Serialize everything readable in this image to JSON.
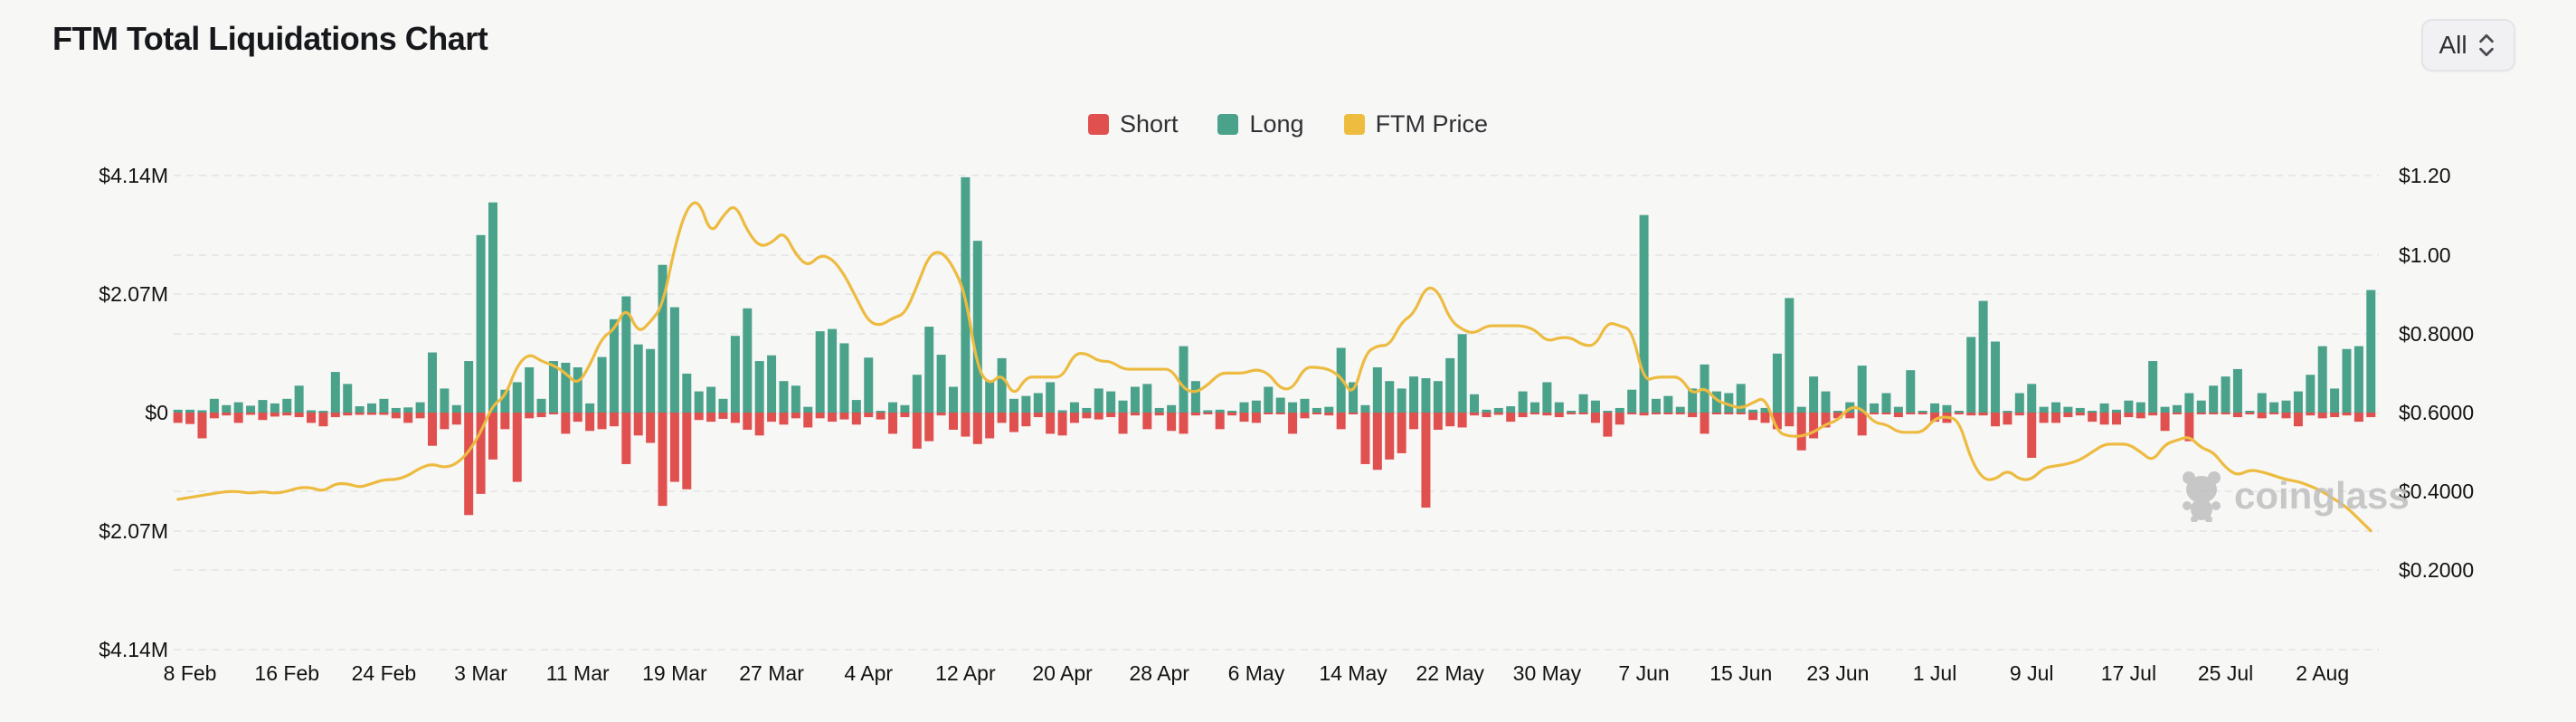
{
  "header": {
    "title": "FTM Total Liquidations Chart",
    "range_selector": {
      "value": "All"
    }
  },
  "legend": {
    "items": [
      {
        "label": "Short",
        "color": "#e0504f"
      },
      {
        "label": "Long",
        "color": "#4aa28b"
      },
      {
        "label": "FTM Price",
        "color": "#eebc3f"
      }
    ]
  },
  "watermark": {
    "text": "coinglass"
  },
  "colors": {
    "background": "#f7f7f6",
    "gridline": "#e3e3e3",
    "axis_text": "#121212",
    "short_bar": "#e0504f",
    "long_bar": "#4aa28b",
    "price_line": "#edbb40"
  },
  "chart_data": {
    "type": "bar+line",
    "title": "FTM Total Liquidations Chart",
    "grid": "dashed-horizontal",
    "legend_position": "top-center",
    "num_points": 182,
    "x_axis": {
      "tick_indices": [
        1,
        9,
        17,
        25,
        33,
        41,
        49,
        57,
        65,
        73,
        81,
        89,
        97,
        105,
        113,
        121,
        129,
        137,
        145,
        153,
        161,
        169,
        177
      ],
      "tick_labels": [
        "8 Feb",
        "16 Feb",
        "24 Feb",
        "3 Mar",
        "11 Mar",
        "19 Mar",
        "27 Mar",
        "4 Apr",
        "12 Apr",
        "20 Apr",
        "28 Apr",
        "6 May",
        "14 May",
        "22 May",
        "30 May",
        "7 Jun",
        "15 Jun",
        "23 Jun",
        "1 Jul",
        "9 Jul",
        "17 Jul",
        "25 Jul",
        "2 Aug"
      ]
    },
    "left_y_axis": {
      "tick_labels": [
        "$4.14M",
        "$2.07M",
        "$0",
        "$2.07M",
        "$4.14M"
      ],
      "tick_values_M": [
        4.14,
        2.07,
        0,
        -2.07,
        -4.14
      ]
    },
    "right_y_axis": {
      "tick_labels": [
        "$1.20",
        "$1.00",
        "$0.8000",
        "$0.6000",
        "$0.4000",
        "$0.2000"
      ],
      "tick_values_usd": [
        1.2,
        1.0,
        0.8,
        0.6,
        0.4,
        0.2
      ]
    },
    "series": [
      {
        "name": "Long",
        "type": "bar",
        "direction": "up",
        "unit": "$M",
        "color": "#4aa28b",
        "values": [
          0.05,
          0.05,
          0.04,
          0.24,
          0.13,
          0.18,
          0.12,
          0.22,
          0.16,
          0.24,
          0.47,
          0.04,
          0.03,
          0.71,
          0.5,
          0.11,
          0.16,
          0.24,
          0.08,
          0.09,
          0.18,
          1.05,
          0.42,
          0.13,
          0.9,
          3.1,
          3.67,
          0.4,
          0.53,
          0.79,
          0.24,
          0.9,
          0.87,
          0.79,
          0.16,
          0.97,
          1.63,
          2.03,
          1.19,
          1.11,
          2.58,
          1.84,
          0.68,
          0.37,
          0.45,
          0.24,
          1.34,
          1.82,
          0.9,
          1.0,
          0.55,
          0.47,
          0.1,
          1.42,
          1.46,
          1.21,
          0.22,
          0.96,
          0.03,
          0.18,
          0.13,
          0.66,
          1.5,
          1.01,
          0.45,
          4.11,
          3.0,
          0.55,
          0.95,
          0.24,
          0.29,
          0.34,
          0.53,
          0.04,
          0.18,
          0.08,
          0.42,
          0.37,
          0.21,
          0.45,
          0.5,
          0.08,
          0.13,
          1.16,
          0.55,
          0.04,
          0.05,
          0.03,
          0.18,
          0.21,
          0.45,
          0.26,
          0.18,
          0.24,
          0.08,
          0.1,
          1.13,
          0.53,
          0.13,
          0.79,
          0.55,
          0.42,
          0.63,
          0.6,
          0.55,
          0.95,
          1.37,
          0.32,
          0.05,
          0.08,
          0.11,
          0.37,
          0.18,
          0.53,
          0.18,
          0.02,
          0.32,
          0.21,
          0.02,
          0.08,
          0.4,
          3.45,
          0.24,
          0.29,
          0.1,
          0.42,
          0.84,
          0.37,
          0.34,
          0.5,
          0.05,
          0.08,
          1.03,
          2.0,
          0.1,
          0.63,
          0.37,
          0.03,
          0.18,
          0.82,
          0.16,
          0.34,
          0.1,
          0.74,
          0.02,
          0.16,
          0.13,
          0.02,
          1.32,
          1.95,
          1.24,
          0.02,
          0.34,
          0.5,
          0.1,
          0.18,
          0.1,
          0.08,
          0.03,
          0.16,
          0.05,
          0.21,
          0.18,
          0.9,
          0.1,
          0.13,
          0.34,
          0.21,
          0.47,
          0.63,
          0.76,
          0.02,
          0.34,
          0.18,
          0.21,
          0.37,
          0.66,
          1.16,
          0.42,
          1.11,
          1.16,
          2.14
        ]
      },
      {
        "name": "Short",
        "type": "bar",
        "direction": "down",
        "unit": "$M",
        "color": "#e0504f",
        "values": [
          0.18,
          0.2,
          0.45,
          0.1,
          0.05,
          0.18,
          0.04,
          0.13,
          0.07,
          0.05,
          0.08,
          0.18,
          0.24,
          0.08,
          0.05,
          0.04,
          0.04,
          0.04,
          0.1,
          0.18,
          0.1,
          0.58,
          0.29,
          0.21,
          1.79,
          1.42,
          0.82,
          0.29,
          1.21,
          0.1,
          0.08,
          0.03,
          0.37,
          0.16,
          0.32,
          0.29,
          0.24,
          0.9,
          0.4,
          0.53,
          1.63,
          1.21,
          1.34,
          0.13,
          0.16,
          0.11,
          0.18,
          0.3,
          0.4,
          0.16,
          0.21,
          0.1,
          0.26,
          0.1,
          0.16,
          0.12,
          0.21,
          0.08,
          0.12,
          0.37,
          0.08,
          0.63,
          0.5,
          0.05,
          0.3,
          0.42,
          0.55,
          0.45,
          0.18,
          0.34,
          0.24,
          0.08,
          0.37,
          0.4,
          0.18,
          0.1,
          0.12,
          0.08,
          0.37,
          0.05,
          0.29,
          0.05,
          0.32,
          0.37,
          0.05,
          0.03,
          0.29,
          0.05,
          0.16,
          0.18,
          0.03,
          0.03,
          0.37,
          0.1,
          0.03,
          0.05,
          0.29,
          0.03,
          0.9,
          1.0,
          0.82,
          0.71,
          0.29,
          1.66,
          0.3,
          0.24,
          0.26,
          0.05,
          0.08,
          0.04,
          0.16,
          0.08,
          0.03,
          0.05,
          0.08,
          0.03,
          0.03,
          0.18,
          0.42,
          0.21,
          0.03,
          0.05,
          0.03,
          0.03,
          0.03,
          0.08,
          0.37,
          0.03,
          0.03,
          0.03,
          0.13,
          0.18,
          0.29,
          0.24,
          0.66,
          0.45,
          0.26,
          0.1,
          0.1,
          0.4,
          0.03,
          0.03,
          0.08,
          0.02,
          0.02,
          0.16,
          0.18,
          0.02,
          0.05,
          0.05,
          0.24,
          0.21,
          0.05,
          0.79,
          0.18,
          0.18,
          0.08,
          0.05,
          0.16,
          0.21,
          0.21,
          0.08,
          0.1,
          0.05,
          0.32,
          0.03,
          0.5,
          0.03,
          0.02,
          0.02,
          0.08,
          0.03,
          0.1,
          0.03,
          0.1,
          0.24,
          0.05,
          0.1,
          0.08,
          0.05,
          0.16,
          0.08
        ]
      },
      {
        "name": "FTM Price",
        "type": "line",
        "unit": "USD",
        "color": "#edbb40",
        "values": [
          0.38,
          0.385,
          0.39,
          0.395,
          0.4,
          0.4,
          0.395,
          0.4,
          0.395,
          0.4,
          0.41,
          0.41,
          0.4,
          0.42,
          0.42,
          0.41,
          0.42,
          0.43,
          0.43,
          0.44,
          0.46,
          0.47,
          0.46,
          0.47,
          0.5,
          0.55,
          0.62,
          0.64,
          0.72,
          0.75,
          0.73,
          0.72,
          0.7,
          0.67,
          0.72,
          0.79,
          0.81,
          0.87,
          0.8,
          0.83,
          0.87,
          1.02,
          1.12,
          1.14,
          1.05,
          1.1,
          1.13,
          1.06,
          1.02,
          1.03,
          1.06,
          1.0,
          0.97,
          1.0,
          0.99,
          0.95,
          0.89,
          0.83,
          0.82,
          0.84,
          0.85,
          0.92,
          1.0,
          1.01,
          0.97,
          0.9,
          0.71,
          0.67,
          0.7,
          0.64,
          0.69,
          0.69,
          0.69,
          0.69,
          0.75,
          0.75,
          0.73,
          0.73,
          0.71,
          0.71,
          0.71,
          0.71,
          0.71,
          0.66,
          0.65,
          0.67,
          0.7,
          0.7,
          0.7,
          0.71,
          0.7,
          0.66,
          0.66,
          0.715,
          0.715,
          0.71,
          0.69,
          0.64,
          0.75,
          0.77,
          0.77,
          0.83,
          0.85,
          0.92,
          0.91,
          0.835,
          0.81,
          0.8,
          0.82,
          0.82,
          0.82,
          0.82,
          0.81,
          0.78,
          0.79,
          0.79,
          0.77,
          0.77,
          0.83,
          0.82,
          0.81,
          0.68,
          0.69,
          0.69,
          0.69,
          0.645,
          0.665,
          0.63,
          0.62,
          0.61,
          0.625,
          0.64,
          0.55,
          0.54,
          0.54,
          0.55,
          0.57,
          0.58,
          0.615,
          0.61,
          0.574,
          0.57,
          0.55,
          0.55,
          0.55,
          0.585,
          0.59,
          0.58,
          0.48,
          0.43,
          0.43,
          0.455,
          0.43,
          0.43,
          0.46,
          0.465,
          0.47,
          0.48,
          0.5,
          0.52,
          0.52,
          0.52,
          0.5,
          0.476,
          0.52,
          0.53,
          0.54,
          0.51,
          0.5,
          0.46,
          0.44,
          0.455,
          0.45,
          0.44,
          0.43,
          0.425,
          0.414,
          0.4,
          0.38,
          0.36,
          0.33,
          0.3
        ]
      }
    ]
  }
}
